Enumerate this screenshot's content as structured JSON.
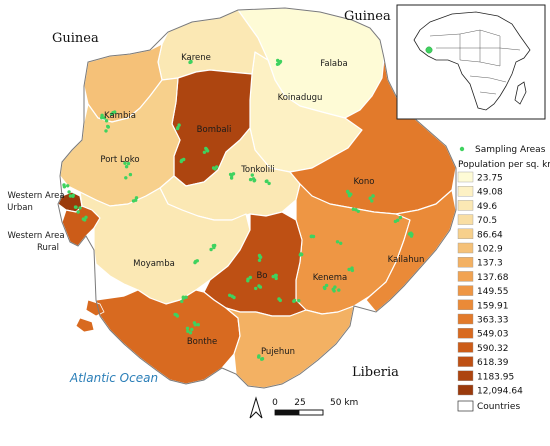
{
  "neighbors": {
    "guinea_left": "Guinea",
    "guinea_right": "Guinea",
    "liberia": "Liberia",
    "ocean": "Atlantic Ocean"
  },
  "districts": {
    "karene": "Karene",
    "falaba": "Falaba",
    "koinadugu": "Koinadugu",
    "kambia": "Kambia",
    "bombali": "Bombali",
    "tonkolili": "Tonkolili",
    "port_loko": "Port Loko",
    "western_area_urban_1": "Western Area",
    "western_area_urban_2": "Urban",
    "western_area_rural_1": "Western Area",
    "western_area_rural_2": "Rural",
    "kono": "Kono",
    "moyamba": "Moyamba",
    "bo": "Bo",
    "kenema": "Kenema",
    "kailahun": "Kailahun",
    "bonthe": "Bonthe",
    "pujehun": "Pujehun"
  },
  "legend": {
    "sampling_label": "Sampling Areas",
    "title": "Population per sq. km",
    "classes": [
      {
        "label": "23.75",
        "color": "#fefbd6"
      },
      {
        "label": "49.08",
        "color": "#fdf1c4"
      },
      {
        "label": "49.6",
        "color": "#fbe8b4"
      },
      {
        "label": "70.5",
        "color": "#f9dea3"
      },
      {
        "label": "86.64",
        "color": "#f7d08c"
      },
      {
        "label": "102.9",
        "color": "#f5c178"
      },
      {
        "label": "137.3",
        "color": "#f3b163"
      },
      {
        "label": "137.68",
        "color": "#f1a352"
      },
      {
        "label": "149.55",
        "color": "#ee9644"
      },
      {
        "label": "159.91",
        "color": "#ea8a38"
      },
      {
        "label": "363.33",
        "color": "#e27a2b"
      },
      {
        "label": "549.03",
        "color": "#d86a20"
      },
      {
        "label": "590.32",
        "color": "#cc5c18"
      },
      {
        "label": "618.39",
        "color": "#be5014"
      },
      {
        "label": "1183.95",
        "color": "#ad4510"
      },
      {
        "label": "12,094.64",
        "color": "#9a3a0c"
      }
    ],
    "countries_label": "Countries"
  },
  "scale": {
    "label_0": "0",
    "label_25": "25",
    "label_50": "50 km"
  },
  "colors": {
    "sampling_point": "#3fd25f",
    "border": "#ffffff",
    "outline": "#7a7a7a"
  }
}
